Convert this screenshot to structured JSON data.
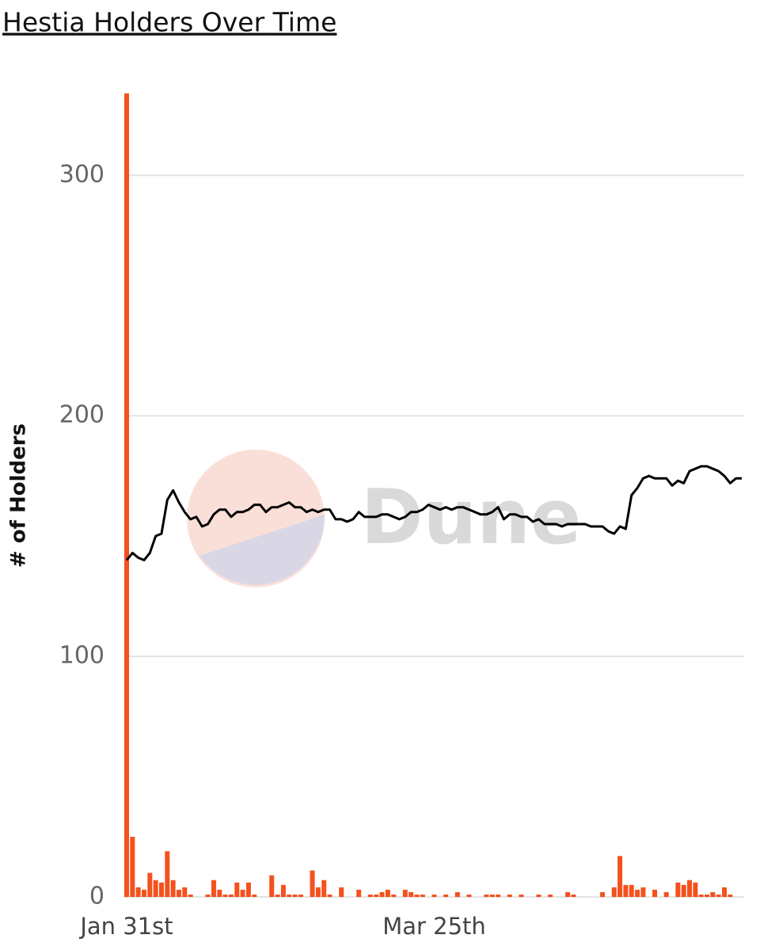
{
  "chart_data": {
    "type": "combo",
    "title": "Hestia Holders Over Time",
    "y_label": "# of Holders",
    "watermark": "Dune",
    "categories": [
      "Jan 31st",
      null,
      null,
      null,
      null,
      null,
      null,
      null,
      null,
      null,
      null,
      null,
      null,
      null,
      null,
      null,
      null,
      null,
      null,
      null,
      null,
      null,
      null,
      null,
      null,
      null,
      null,
      null,
      null,
      null,
      null,
      null,
      null,
      null,
      null,
      null,
      null,
      null,
      null,
      null,
      null,
      null,
      null,
      null,
      null,
      null,
      null,
      null,
      null,
      null,
      null,
      null,
      null,
      "Mar 25th",
      null,
      null,
      null,
      null,
      null,
      null,
      null,
      null,
      null,
      null,
      null,
      null,
      null,
      null,
      null,
      null,
      null,
      null,
      null,
      null,
      null,
      null,
      null,
      null,
      null,
      null,
      null,
      null,
      null,
      null,
      null,
      null,
      null,
      null,
      null,
      null,
      null,
      null,
      null,
      null,
      null,
      null,
      null,
      null,
      null,
      null,
      null,
      null,
      null,
      null,
      null,
      null,
      null
    ],
    "series": [
      {
        "type": "bar",
        "color": "#f4511e",
        "values": [
          334,
          25,
          4,
          3,
          10,
          7,
          6,
          19,
          7,
          3,
          4,
          1,
          0,
          0,
          1,
          7,
          3,
          1,
          1,
          6,
          3,
          6,
          1,
          0,
          0,
          9,
          1,
          5,
          1,
          1,
          1,
          0,
          11,
          4,
          7,
          1,
          0,
          4,
          0,
          0,
          3,
          0,
          1,
          1,
          2,
          3,
          1,
          0,
          3,
          2,
          1,
          1,
          0,
          1,
          0,
          1,
          0,
          2,
          0,
          1,
          0,
          0,
          1,
          1,
          1,
          0,
          1,
          0,
          1,
          0,
          0,
          1,
          0,
          1,
          0,
          0,
          2,
          1,
          0,
          0,
          0,
          0,
          2,
          0,
          4,
          17,
          5,
          5,
          3,
          4,
          0,
          3,
          0,
          2,
          0,
          6,
          5,
          7,
          6,
          1,
          1,
          2,
          1,
          4,
          1,
          0,
          0
        ]
      },
      {
        "type": "line",
        "color": "#000000",
        "values": [
          140,
          143,
          141,
          140,
          143,
          150,
          151,
          165,
          169,
          164,
          160,
          157,
          158,
          154,
          155,
          159,
          161,
          161,
          158,
          160,
          160,
          161,
          163,
          163,
          160,
          162,
          162,
          163,
          164,
          162,
          162,
          160,
          161,
          160,
          161,
          161,
          157,
          157,
          156,
          157,
          160,
          158,
          158,
          158,
          159,
          159,
          158,
          157,
          158,
          160,
          160,
          161,
          163,
          162,
          161,
          162,
          161,
          162,
          162,
          161,
          160,
          159,
          159,
          160,
          162,
          157,
          159,
          159,
          158,
          158,
          156,
          157,
          155,
          155,
          155,
          154,
          155,
          155,
          155,
          155,
          154,
          154,
          154,
          152,
          151,
          154,
          153,
          167,
          170,
          174,
          175,
          174,
          174,
          174,
          171,
          173,
          172,
          177,
          178,
          179,
          179,
          178,
          177,
          175,
          172,
          174,
          174
        ]
      }
    ],
    "ylim": [
      0,
      334
    ],
    "yticks": [
      0,
      100,
      200,
      300
    ],
    "grid": true
  }
}
